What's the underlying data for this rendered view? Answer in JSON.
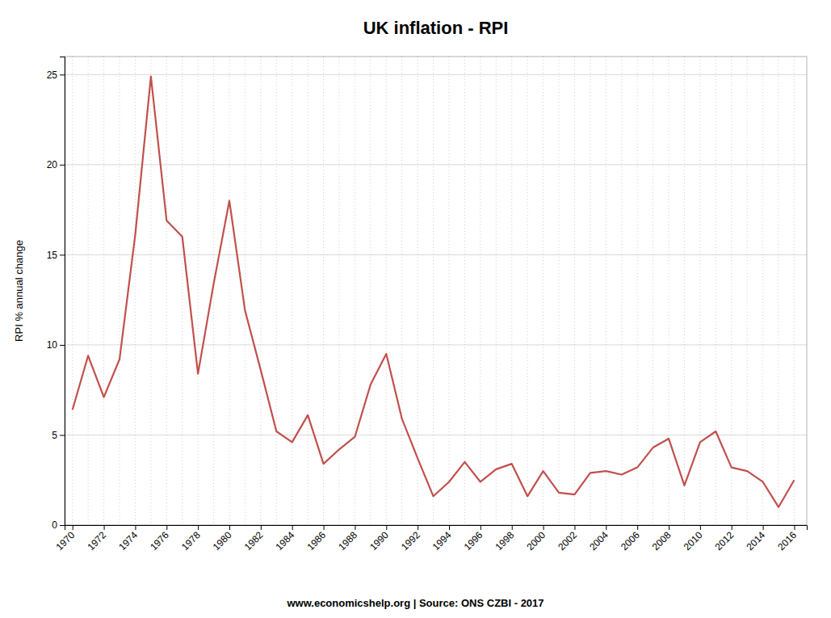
{
  "chart_data": {
    "type": "line",
    "title": "UK inflation - RPI",
    "ylabel": "RPI % annual change",
    "source": "www.economicshelp.org | Source: ONS CZBI - 2017",
    "color": "#c0504d",
    "x": [
      1970,
      1971,
      1972,
      1973,
      1974,
      1975,
      1976,
      1977,
      1978,
      1979,
      1980,
      1981,
      1982,
      1983,
      1984,
      1985,
      1986,
      1987,
      1988,
      1989,
      1990,
      1991,
      1992,
      1993,
      1994,
      1995,
      1996,
      1997,
      1998,
      1999,
      2000,
      2001,
      2002,
      2003,
      2004,
      2005,
      2006,
      2007,
      2008,
      2009,
      2010,
      2011,
      2012,
      2013,
      2014,
      2015,
      2016
    ],
    "values": [
      6.4,
      9.4,
      7.1,
      9.2,
      16.1,
      24.9,
      16.9,
      16.0,
      8.4,
      13.4,
      18.0,
      11.9,
      8.6,
      5.2,
      4.6,
      6.1,
      3.4,
      4.2,
      4.9,
      7.8,
      9.5,
      5.9,
      3.7,
      1.6,
      2.4,
      3.5,
      2.4,
      3.1,
      3.4,
      1.6,
      3.0,
      1.8,
      1.7,
      2.9,
      3.0,
      2.8,
      3.2,
      4.3,
      4.8,
      2.2,
      4.6,
      5.2,
      3.2,
      3.0,
      2.4,
      1.0,
      2.5
    ],
    "xlim": [
      1969.5,
      2016.8
    ],
    "xticks": [
      1970,
      1972,
      1974,
      1976,
      1978,
      1980,
      1982,
      1984,
      1986,
      1988,
      1990,
      1992,
      1994,
      1996,
      1998,
      2000,
      2002,
      2004,
      2006,
      2008,
      2010,
      2012,
      2014,
      2016
    ],
    "ylim": [
      0,
      26
    ],
    "yticks": [
      0,
      5,
      10,
      15,
      20,
      25
    ],
    "grid": true
  }
}
